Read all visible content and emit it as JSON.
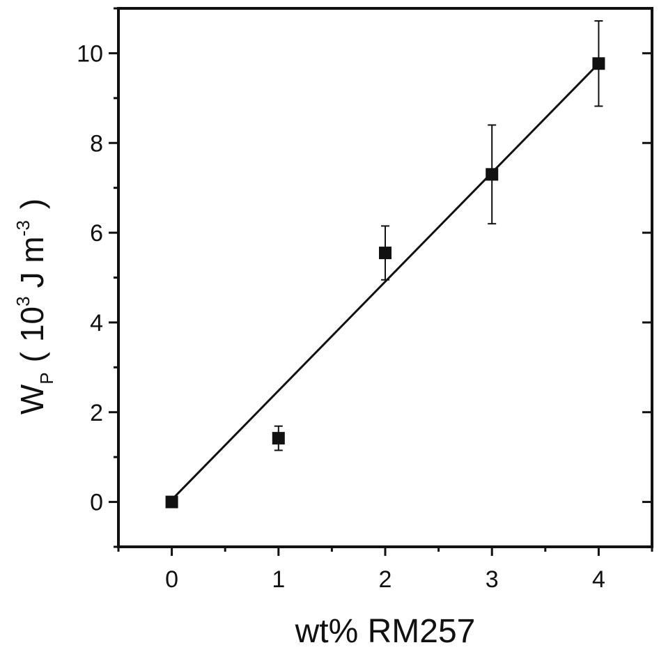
{
  "chart_data": {
    "type": "scatter",
    "xlabel": "wt% RM257",
    "ylabel": {
      "base": "W",
      "subscript": "P",
      "open": "(",
      "unit_prefix": "10",
      "unit_prefix_exp": "3",
      "unit_body": "J m",
      "unit_body_exp": "-3",
      "close": ")"
    },
    "xlim": [
      -0.5,
      4.5
    ],
    "ylim": [
      -1,
      11
    ],
    "x_ticks": [
      0,
      1,
      2,
      3,
      4
    ],
    "x_tick_labels": [
      "0",
      "1",
      "2",
      "3",
      "4"
    ],
    "y_ticks": [
      0,
      2,
      4,
      6,
      8,
      10
    ],
    "y_tick_labels": [
      "0",
      "2",
      "4",
      "6",
      "8",
      "10"
    ],
    "grid": false,
    "marker": "filled-square",
    "color": "#111111",
    "series": [
      {
        "points": [
          {
            "x": 0,
            "y": 0.0,
            "err": 0
          },
          {
            "x": 1,
            "y": 1.42,
            "err": 0.27
          },
          {
            "x": 2,
            "y": 5.55,
            "err": 0.6
          },
          {
            "x": 3,
            "y": 7.3,
            "err": 1.1
          },
          {
            "x": 4,
            "y": 9.77,
            "err": 0.95
          }
        ]
      }
    ],
    "fit_line": {
      "x": [
        0,
        4
      ],
      "y": [
        0.05,
        9.77
      ]
    }
  }
}
